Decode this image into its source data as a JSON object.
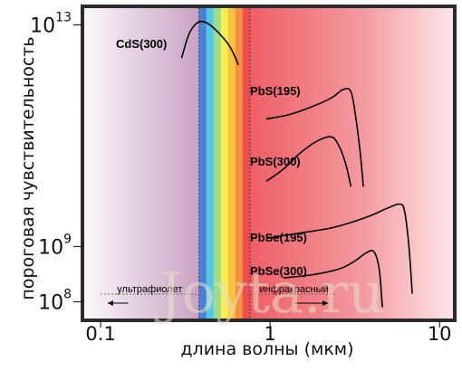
{
  "chart_data": {
    "type": "line",
    "title": "",
    "xlabel": "длина волны (мкм)",
    "ylabel": "пороговая чувствительность",
    "x_scale": "log",
    "y_scale": "log",
    "xlim": [
      0.08,
      12
    ],
    "ylim": [
      50000000,
      20000000000000
    ],
    "x_ticks": [
      {
        "value": 0.1,
        "label": "0.1"
      },
      {
        "value": 1,
        "label": "1"
      },
      {
        "value": 10,
        "label": "10"
      }
    ],
    "y_ticks": [
      {
        "value": 100000000,
        "base": "10",
        "exp": "8"
      },
      {
        "value": 1000000000,
        "base": "10",
        "exp": "9"
      },
      {
        "value": 10000000000000,
        "base": "10",
        "exp": "13"
      }
    ],
    "regions": [
      {
        "label": "ультрафиолет",
        "from": 0.1,
        "to": 0.38
      },
      {
        "label": "инфракрасный",
        "from": 0.76,
        "to": 2.4
      }
    ],
    "series": [
      {
        "name": "CdS(300)",
        "color": "#000000",
        "points": [
          [
            0.3,
            2500000000000
          ],
          [
            0.33,
            6500000000000
          ],
          [
            0.36,
            10000000000000
          ],
          [
            0.39,
            11500000000000
          ],
          [
            0.43,
            10500000000000
          ],
          [
            0.5,
            7000000000000
          ],
          [
            0.58,
            4000000000000
          ],
          [
            0.65,
            1900000000000
          ]
        ]
      },
      {
        "name": "PbS(195)",
        "color": "#000000",
        "points": [
          [
            0.95,
            200000000000
          ],
          [
            1.3,
            240000000000
          ],
          [
            1.8,
            340000000000
          ],
          [
            2.3,
            480000000000
          ],
          [
            2.7,
            680000000000
          ],
          [
            3.0,
            620000000000
          ],
          [
            3.2,
            220000000000
          ],
          [
            3.4,
            50000000000
          ],
          [
            3.55,
            12000000000
          ]
        ]
      },
      {
        "name": "PbS(300)",
        "color": "#000000",
        "points": [
          [
            0.95,
            15000000000
          ],
          [
            1.2,
            25000000000
          ],
          [
            1.5,
            48000000000
          ],
          [
            1.9,
            80000000000
          ],
          [
            2.3,
            95000000000
          ],
          [
            2.55,
            65000000000
          ],
          [
            2.8,
            30000000000
          ],
          [
            3.0,
            12000000000
          ]
        ]
      },
      {
        "name": "PbSe(195)",
        "color": "#000000",
        "points": [
          [
            0.95,
            1400000000
          ],
          [
            1.5,
            1750000000
          ],
          [
            2.2,
            2100000000
          ],
          [
            3.0,
            2700000000
          ],
          [
            4.0,
            3700000000
          ],
          [
            5.0,
            5000000000
          ],
          [
            5.8,
            5800000000
          ],
          [
            6.2,
            4500000000
          ],
          [
            6.6,
            1000000000
          ],
          [
            6.9,
            140000000
          ]
        ]
      },
      {
        "name": "PbSe(300)",
        "color": "#000000",
        "points": [
          [
            1.2,
            270000000
          ],
          [
            1.8,
            310000000
          ],
          [
            2.6,
            400000000
          ],
          [
            3.2,
            560000000
          ],
          [
            3.7,
            770000000
          ],
          [
            4.1,
            800000000
          ],
          [
            4.4,
            400000000
          ],
          [
            4.6,
            80000000
          ]
        ]
      }
    ],
    "spectrum_colors": [
      "#4a7fd1",
      "#54c8ea",
      "#9ddc8a",
      "#f5ef4f",
      "#f9c240",
      "#f4913e",
      "#ec4d4d"
    ],
    "background": {
      "uv": "#c9a3c4",
      "ir": "#ee6e73",
      "frame": "#2b2b2b"
    }
  },
  "watermark": "Joyta.ru"
}
